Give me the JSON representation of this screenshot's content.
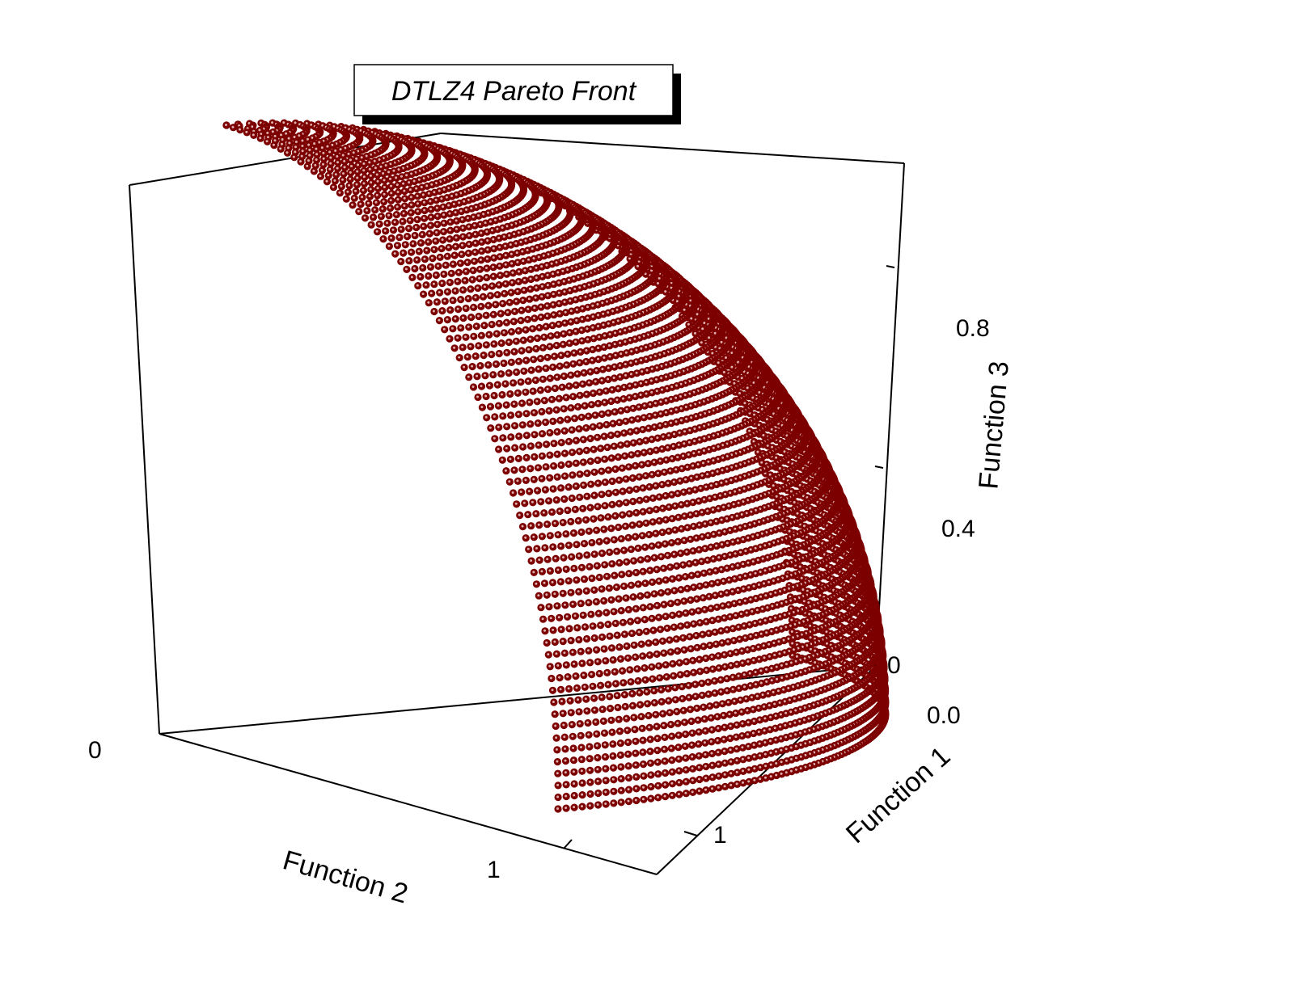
{
  "chart_data": {
    "type": "scatter",
    "title": "DTLZ4 Pareto Front",
    "xlabel": "Function 1",
    "ylabel": "Function 2",
    "zlabel": "Function 3",
    "xlim": [
      0,
      1
    ],
    "ylim": [
      0,
      1
    ],
    "zlim": [
      0,
      1
    ],
    "x_ticks": [
      "0.0",
      "1"
    ],
    "y_ticks": [
      "0",
      "1"
    ],
    "z_ticks": [
      "0",
      "0.4",
      "0.8"
    ],
    "surface": "f1^2 + f2^2 + f3^2 = 1, f1,f2,f3 >= 0",
    "series": [
      {
        "marker": "filled circle",
        "color": "#7d0000",
        "highlight": "#e0b0b0"
      }
    ],
    "grid": false,
    "legend": "none"
  }
}
